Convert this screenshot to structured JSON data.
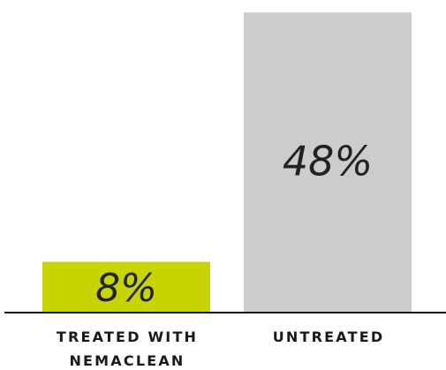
{
  "chart_data": {
    "type": "bar",
    "categories": [
      [
        "TREATED WITH",
        "NEMACLEAN"
      ],
      [
        "UNTREATED"
      ]
    ],
    "values": [
      8,
      48
    ],
    "value_labels": [
      "8%",
      "48%"
    ],
    "colors": [
      "#c8d400",
      "#cccccc"
    ],
    "ylim": [
      0,
      50
    ],
    "title": "",
    "xlabel": "",
    "ylabel": "",
    "grid": false,
    "legend": "none"
  }
}
